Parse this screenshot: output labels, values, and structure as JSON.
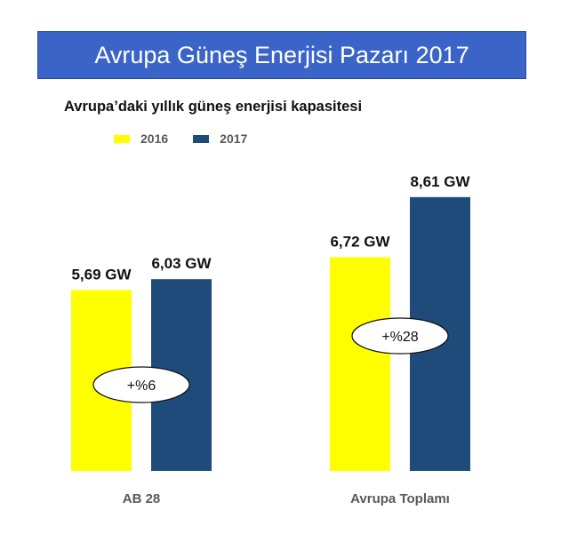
{
  "title": "Avrupa Güneş Enerjisi Pazarı 2017",
  "subtitle": "Avrupa’daki yıllık güneş enerjisi kapasitesi",
  "colors": {
    "banner": "#3a64c8",
    "s2016": "#ffff00",
    "s2017": "#1f4b7a"
  },
  "chart_data": {
    "type": "bar",
    "categories": [
      "AB 28",
      "Avrupa Toplamı"
    ],
    "series": [
      {
        "name": "2016",
        "values": [
          5.69,
          6.72
        ],
        "labels": [
          "5,69 GW",
          "6,72 GW"
        ]
      },
      {
        "name": "2017",
        "values": [
          6.03,
          8.61
        ],
        "labels": [
          "6,03 GW",
          "8,61 GW"
        ]
      }
    ],
    "growth": [
      "+%6",
      "+%28"
    ],
    "unit": "GW",
    "ylim": [
      0,
      9.5
    ],
    "grid": false,
    "legend": "top-left"
  }
}
